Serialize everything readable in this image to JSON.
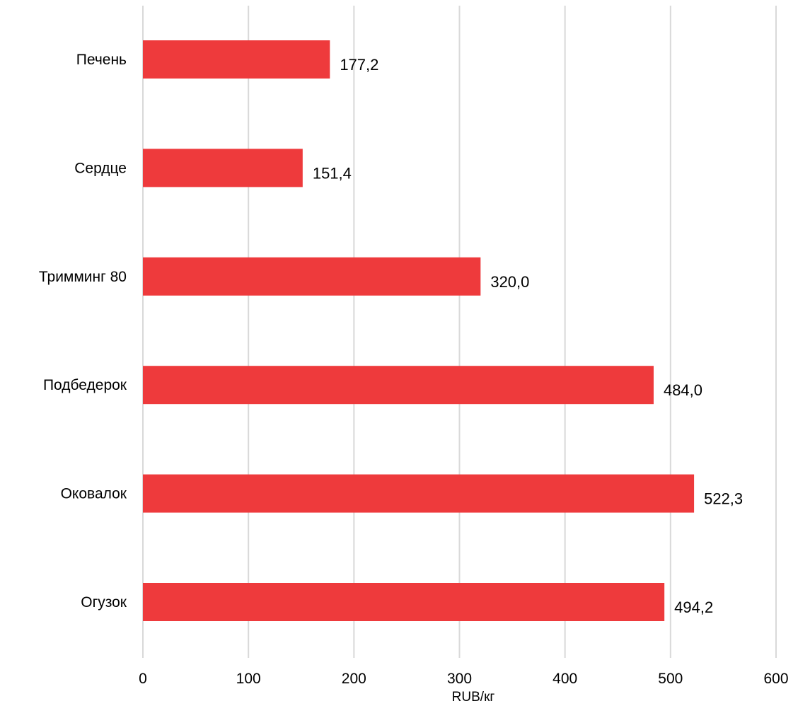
{
  "chart_data": {
    "type": "bar",
    "orientation": "horizontal",
    "categories": [
      "Печень",
      "Сердце",
      "Тримминг 80",
      "Подбедерок",
      "Оковалок",
      "Огузок"
    ],
    "values": [
      177.2,
      151.4,
      320.0,
      484.0,
      522.3,
      494.2
    ],
    "value_labels": [
      "177,2",
      "151,4",
      "320,0",
      "484,0",
      "522,3",
      "494,2"
    ],
    "xlabel": "RUB/кг",
    "ylabel": "",
    "title": "",
    "xlim": [
      0,
      600
    ],
    "x_ticks": [
      0,
      100,
      200,
      300,
      400,
      500,
      600
    ],
    "grid": "vertical",
    "legend": "none",
    "bar_color": "#ee3a3c",
    "grid_color": "#d9d9d9"
  }
}
